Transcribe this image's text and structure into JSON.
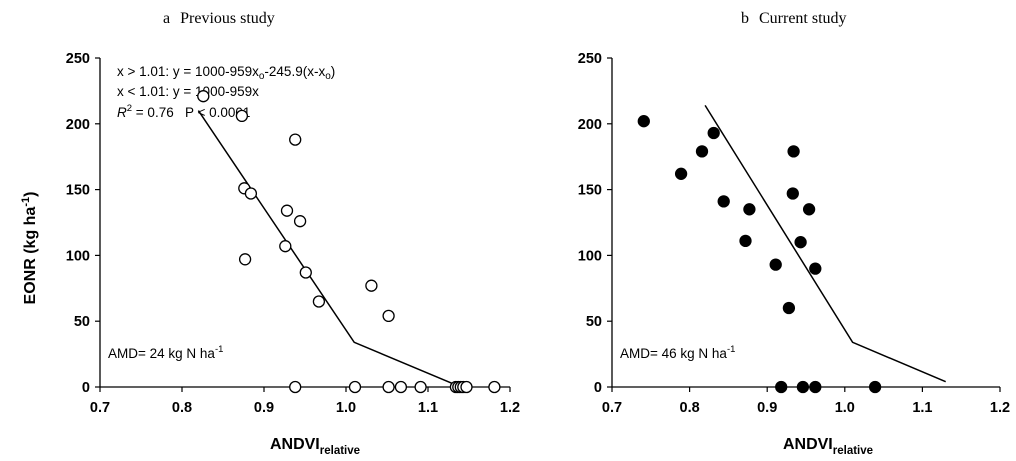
{
  "panels": [
    {
      "panel_label": "a",
      "panel_title": "Previous study",
      "equations": [
        {
          "prefix": "x > 1.01: y = 1000-959x",
          "sub": "o",
          "mid": "-245.9(x-x",
          "sub2": "o",
          "suffix": ")"
        },
        {
          "prefix": "x < 1.01: y = 1000-959x",
          "sub": "",
          "mid": "",
          "sub2": "",
          "suffix": ""
        }
      ],
      "r2": {
        "symbol": "R",
        "sup": "2",
        "value": " = 0.76   P < 0.0001"
      },
      "amd": {
        "prefix": "AMD= 24 kg N ha",
        "sup": "-1"
      }
    },
    {
      "panel_label": "b",
      "panel_title": "Current study",
      "amd": {
        "prefix": "AMD= 46 kg N ha",
        "sup": "-1"
      }
    }
  ],
  "axes": {
    "ylabel": {
      "prefix": "EONR (kg ha",
      "sup": "-1",
      "suffix": ")"
    },
    "xlabel": {
      "prefix": "ANDVI",
      "sub": "relative"
    },
    "xticks": [
      "0.7",
      "0.8",
      "0.9",
      "1.0",
      "1.1",
      "1.2"
    ],
    "yticks": [
      "0",
      "50",
      "100",
      "150",
      "200",
      "250"
    ]
  },
  "colors": {
    "axis": "#000000",
    "marker_open_fill": "#ffffff",
    "marker_filled": "#000000"
  },
  "chart_data": [
    {
      "type": "scatter",
      "title": "Previous study",
      "xlabel": "ANDVIrelative",
      "ylabel": "EONR (kg ha-1)",
      "xlim": [
        0.7,
        1.2
      ],
      "ylim": [
        0,
        250
      ],
      "marker": "open-circle",
      "points": [
        [
          0.826,
          221
        ],
        [
          0.873,
          206
        ],
        [
          0.938,
          188
        ],
        [
          0.876,
          151
        ],
        [
          0.884,
          147
        ],
        [
          0.928,
          134
        ],
        [
          0.944,
          126
        ],
        [
          0.926,
          107
        ],
        [
          0.877,
          97
        ],
        [
          0.951,
          87
        ],
        [
          0.967,
          65
        ],
        [
          1.031,
          77
        ],
        [
          1.052,
          54
        ],
        [
          0.938,
          0
        ],
        [
          1.011,
          0
        ],
        [
          1.052,
          0
        ],
        [
          1.067,
          0
        ],
        [
          1.091,
          0
        ],
        [
          1.134,
          0
        ],
        [
          1.137,
          0
        ],
        [
          1.14,
          0
        ],
        [
          1.143,
          0
        ],
        [
          1.147,
          0
        ],
        [
          1.181,
          0
        ]
      ],
      "fit_line": [
        [
          0.82,
          210
        ],
        [
          1.01,
          34
        ],
        [
          1.14,
          0
        ]
      ]
    },
    {
      "type": "scatter",
      "title": "Current study",
      "xlabel": "ANDVIrelative",
      "ylabel": "EONR (kg ha-1)",
      "xlim": [
        0.7,
        1.2
      ],
      "ylim": [
        0,
        250
      ],
      "marker": "filled-circle",
      "points": [
        [
          0.741,
          202
        ],
        [
          0.789,
          162
        ],
        [
          0.816,
          179
        ],
        [
          0.831,
          193
        ],
        [
          0.844,
          141
        ],
        [
          0.877,
          135
        ],
        [
          0.872,
          111
        ],
        [
          0.934,
          179
        ],
        [
          0.933,
          147
        ],
        [
          0.954,
          135
        ],
        [
          0.943,
          110
        ],
        [
          0.962,
          90
        ],
        [
          0.911,
          93
        ],
        [
          0.928,
          60
        ],
        [
          0.918,
          0
        ],
        [
          0.946,
          0
        ],
        [
          0.962,
          0
        ],
        [
          1.039,
          0
        ]
      ],
      "fit_line": [
        [
          0.82,
          214
        ],
        [
          1.01,
          34
        ],
        [
          1.13,
          4
        ]
      ]
    }
  ]
}
